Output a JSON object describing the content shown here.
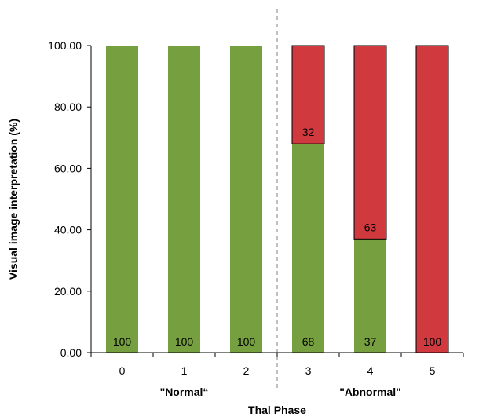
{
  "chart_data": {
    "type": "bar",
    "stacked": true,
    "categories": [
      "0",
      "1",
      "2",
      "3",
      "4",
      "5"
    ],
    "series": [
      {
        "color": "#76a03f",
        "values": [
          100,
          100,
          100,
          68,
          37,
          0
        ]
      },
      {
        "color": "#d0393e",
        "values": [
          0,
          0,
          0,
          32,
          63,
          100
        ]
      }
    ],
    "data_labels": [
      {
        "category": "0",
        "text": "100",
        "position": "bottom"
      },
      {
        "category": "1",
        "text": "100",
        "position": "bottom"
      },
      {
        "category": "2",
        "text": "100",
        "position": "bottom"
      },
      {
        "category": "3",
        "text": "68",
        "position": "bottom"
      },
      {
        "category": "3",
        "text": "32",
        "position": "top-segment"
      },
      {
        "category": "4",
        "text": "37",
        "position": "bottom"
      },
      {
        "category": "4",
        "text": "63",
        "position": "top-segment"
      },
      {
        "category": "5",
        "text": "100",
        "position": "bottom"
      }
    ],
    "yticks": [
      "0.00",
      "20.00",
      "40.00",
      "60.00",
      "80.00",
      "100.00"
    ],
    "ylim": [
      0,
      100
    ],
    "ylabel": "Visual image interpretation (%)",
    "xlabel": "Thal Phase",
    "group_labels": [
      "\"Normal“",
      "\"Abnormal\""
    ],
    "divider_between": [
      "2",
      "3"
    ],
    "legend": "none",
    "grid": false
  }
}
